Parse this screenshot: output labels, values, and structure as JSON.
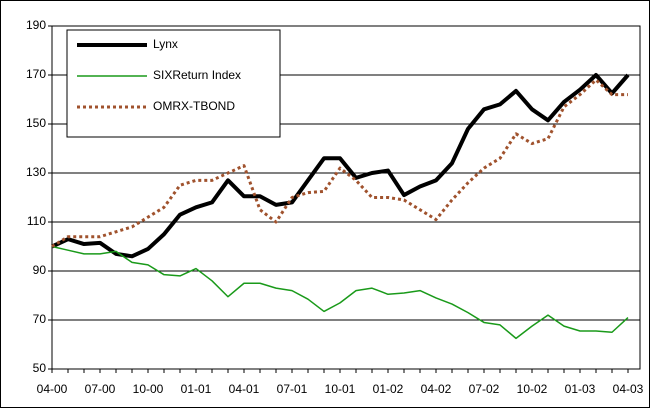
{
  "chart_data": {
    "type": "line",
    "categories": [
      "04-00",
      null,
      null,
      "07-00",
      null,
      null,
      "10-00",
      null,
      null,
      "01-01",
      null,
      null,
      "04-01",
      null,
      null,
      "07-01",
      null,
      null,
      "10-01",
      null,
      null,
      "01-02",
      null,
      null,
      "04-02",
      null,
      null,
      "07-02",
      null,
      null,
      "10-02",
      null,
      null,
      "01-03",
      null,
      null,
      "04-03"
    ],
    "series": [
      {
        "name": "Lynx",
        "color": "#000000",
        "values": [
          100,
          103,
          101,
          101.5,
          97,
          96,
          99,
          105,
          113,
          116,
          118,
          127,
          120.5,
          120.5,
          117,
          118,
          127,
          136,
          136,
          128,
          130,
          131,
          121,
          124.5,
          127,
          134,
          148,
          156,
          158,
          163.5,
          156,
          151.5,
          159,
          164,
          170,
          162.5,
          170
        ]
      },
      {
        "name": "SIXReturn Index",
        "color": "#1a9a1a",
        "values": [
          100,
          98.5,
          97,
          97,
          98,
          93.5,
          92.5,
          88.5,
          88,
          91,
          86,
          79.5,
          85,
          85,
          83,
          82,
          78.5,
          73.5,
          77,
          82,
          83,
          80.5,
          81,
          82,
          79,
          76.5,
          73,
          69,
          68,
          62.5,
          67.5,
          72,
          67.5,
          65.5,
          65.5,
          65,
          71
        ]
      },
      {
        "name": "OMRX-TBOND",
        "color": "#a0522d",
        "values": [
          100,
          104,
          104,
          104,
          106,
          108,
          112,
          116,
          125,
          127,
          127,
          130,
          133,
          115,
          110,
          120,
          122,
          122.5,
          132,
          127,
          120,
          120,
          119,
          115,
          111,
          119,
          126,
          132,
          136,
          146,
          142,
          144,
          157,
          162,
          168,
          162,
          162
        ]
      }
    ],
    "ylim": [
      50,
      190
    ],
    "yticks": [
      50,
      70,
      90,
      110,
      130,
      150,
      170,
      190
    ],
    "grid": true,
    "legend": "upper left"
  }
}
